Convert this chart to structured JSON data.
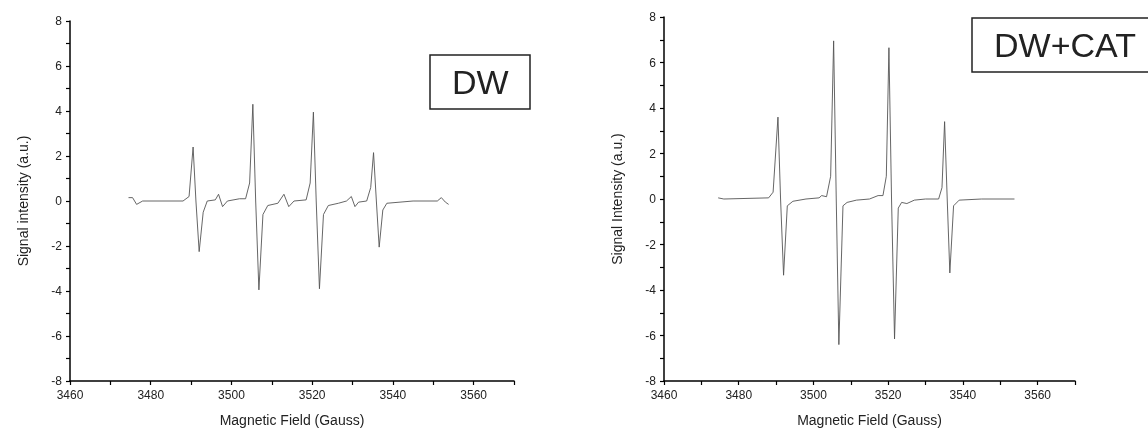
{
  "chart_data": [
    {
      "type": "line",
      "title": "DW",
      "xlabel": "Magnetic Field (Gauss)",
      "ylabel": "Signal intensity (a.u.)",
      "xlim": [
        3460,
        3570
      ],
      "ylim": [
        -8,
        8
      ],
      "xticks": [
        3460,
        {
          "value": 3470,
          "label": null
        },
        3480,
        {
          "value": 3490,
          "label": null
        },
        3500,
        {
          "value": 3510,
          "label": null
        },
        3520,
        {
          "value": 3530,
          "label": null
        },
        3540,
        {
          "value": 3550,
          "label": null
        },
        3560,
        {
          "value": 3570,
          "label": null
        }
      ],
      "yticks": [
        -8,
        {
          "value": -7,
          "label": null
        },
        -6,
        {
          "value": -5,
          "label": null
        },
        -4,
        {
          "value": -3,
          "label": null
        },
        -2,
        {
          "value": -1,
          "label": null
        },
        0,
        {
          "value": 1,
          "label": null
        },
        2,
        {
          "value": 3,
          "label": null
        },
        4,
        {
          "value": 5,
          "label": null
        },
        6,
        {
          "value": 7,
          "label": null
        },
        8
      ],
      "grid": false,
      "marker": "none",
      "line_style": "solid",
      "series": [
        {
          "color": "#555555",
          "x": [
            3474.5,
            3475.5,
            3476.5,
            3478,
            3488,
            3489.5,
            3490.5,
            3491.2,
            3492,
            3493,
            3494,
            3496,
            3496.8,
            3497.8,
            3499,
            3502,
            3503.5,
            3504.5,
            3505.3,
            3506,
            3506.8,
            3507.8,
            3509,
            3511.5,
            3513,
            3514.2,
            3515.5,
            3518.5,
            3519.5,
            3520.3,
            3521,
            3521.8,
            3522.8,
            3524,
            3526.5,
            3528.5,
            3529.7,
            3530.6,
            3531.5,
            3533.5,
            3534.5,
            3535.2,
            3535.9,
            3536.6,
            3537.5,
            3538.5,
            3545,
            3551,
            3552,
            3553,
            3553.8
          ],
          "values": [
            0.15,
            0.15,
            -0.15,
            0,
            0,
            0.2,
            2.4,
            0,
            -2.25,
            -0.5,
            0,
            0.05,
            0.3,
            -0.25,
            0,
            0.1,
            0.1,
            0.8,
            4.3,
            0,
            -3.95,
            -0.6,
            -0.2,
            -0.1,
            0.3,
            -0.25,
            0,
            0.05,
            0.8,
            3.95,
            0,
            -3.9,
            -0.6,
            -0.2,
            -0.1,
            0,
            0.2,
            -0.25,
            -0.05,
            0,
            0.6,
            2.15,
            0,
            -2.05,
            -0.4,
            -0.1,
            0,
            0,
            0.15,
            -0.05,
            -0.15
          ]
        }
      ]
    },
    {
      "type": "line",
      "title": "DW+CAT",
      "xlabel": "Magnetic Field (Gauss)",
      "ylabel": "Signal Intensity (a.u.)",
      "xlim": [
        3460,
        3570
      ],
      "ylim": [
        -8,
        8
      ],
      "xticks": [
        3460,
        {
          "value": 3470,
          "label": null
        },
        3480,
        {
          "value": 3490,
          "label": null
        },
        3500,
        {
          "value": 3510,
          "label": null
        },
        3520,
        {
          "value": 3530,
          "label": null
        },
        3540,
        {
          "value": 3550,
          "label": null
        },
        3560,
        {
          "value": 3570,
          "label": null
        }
      ],
      "yticks": [
        -8,
        {
          "value": -7,
          "label": null
        },
        -6,
        {
          "value": -5,
          "label": null
        },
        -4,
        {
          "value": -3,
          "label": null
        },
        -2,
        {
          "value": -1,
          "label": null
        },
        0,
        {
          "value": 1,
          "label": null
        },
        2,
        {
          "value": 3,
          "label": null
        },
        4,
        {
          "value": 5,
          "label": null
        },
        6,
        {
          "value": 7,
          "label": null
        },
        8
      ],
      "grid": false,
      "marker": "none",
      "line_style": "solid",
      "series": [
        {
          "color": "#555555",
          "x": [
            3474.5,
            3476,
            3488,
            3489.2,
            3490.5,
            3491.2,
            3492,
            3493,
            3494.5,
            3498,
            3501.5,
            3502.2,
            3503.5,
            3504.6,
            3505.4,
            3506.1,
            3506.8,
            3507.9,
            3509,
            3511.5,
            3515,
            3517.3,
            3518.6,
            3519.5,
            3520.2,
            3520.9,
            3521.7,
            3522.7,
            3523.6,
            3525,
            3527,
            3530,
            3533.5,
            3534.4,
            3535.1,
            3535.8,
            3536.5,
            3537.5,
            3539,
            3545,
            3553.8
          ],
          "values": [
            0.05,
            0,
            0.05,
            0.3,
            3.6,
            0,
            -3.35,
            -0.3,
            -0.1,
            0,
            0.05,
            0.15,
            0.1,
            1,
            6.95,
            0,
            -6.4,
            -0.3,
            -0.15,
            -0.05,
            0,
            0.15,
            0.15,
            1,
            6.65,
            0,
            -6.15,
            -0.4,
            -0.15,
            -0.2,
            -0.05,
            0,
            0,
            0.5,
            3.4,
            0,
            -3.25,
            -0.3,
            -0.05,
            0,
            0
          ]
        }
      ]
    }
  ]
}
